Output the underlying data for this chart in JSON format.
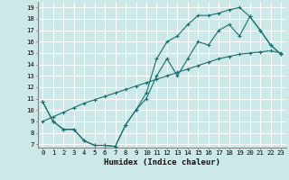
{
  "xlabel": "Humidex (Indice chaleur)",
  "bg_color": "#cce8e8",
  "line_color": "#1a6e6e",
  "grid_color": "#ffffff",
  "xlim": [
    -0.5,
    23.5
  ],
  "ylim": [
    6.7,
    19.5
  ],
  "xticks": [
    0,
    1,
    2,
    3,
    4,
    5,
    6,
    7,
    8,
    9,
    10,
    11,
    12,
    13,
    14,
    15,
    16,
    17,
    18,
    19,
    20,
    21,
    22,
    23
  ],
  "yticks": [
    7,
    8,
    9,
    10,
    11,
    12,
    13,
    14,
    15,
    16,
    17,
    18,
    19
  ],
  "line1_x": [
    0,
    1,
    2,
    3,
    4,
    5,
    6,
    7,
    8,
    9,
    10,
    11,
    12,
    13,
    14,
    15,
    16,
    17,
    18,
    19,
    20,
    21,
    22,
    23
  ],
  "line1_y": [
    10.7,
    9.0,
    8.3,
    8.3,
    7.3,
    6.9,
    6.9,
    6.8,
    8.7,
    10.0,
    11.0,
    13.0,
    14.5,
    13.0,
    14.5,
    16.0,
    15.7,
    17.0,
    17.5,
    16.5,
    18.2,
    17.0,
    15.7,
    14.9
  ],
  "line2_x": [
    0,
    1,
    2,
    3,
    4,
    5,
    6,
    7,
    8,
    9,
    10,
    11,
    12,
    13,
    14,
    15,
    16,
    17,
    18,
    19,
    20,
    21,
    22,
    23
  ],
  "line2_y": [
    10.7,
    9.0,
    8.3,
    8.3,
    7.3,
    6.9,
    6.9,
    6.8,
    8.7,
    10.0,
    11.5,
    14.5,
    16.0,
    16.5,
    17.5,
    18.3,
    18.3,
    18.5,
    18.8,
    19.0,
    18.2,
    17.0,
    15.7,
    14.9
  ],
  "line3_x": [
    0,
    1,
    2,
    3,
    4,
    5,
    6,
    7,
    8,
    9,
    10,
    11,
    12,
    13,
    14,
    15,
    16,
    17,
    18,
    19,
    20,
    21,
    22,
    23
  ],
  "line3_y": [
    9.0,
    9.4,
    9.8,
    10.2,
    10.6,
    10.9,
    11.2,
    11.5,
    11.8,
    12.1,
    12.4,
    12.7,
    13.0,
    13.3,
    13.6,
    13.9,
    14.2,
    14.5,
    14.7,
    14.9,
    15.0,
    15.1,
    15.2,
    15.0
  ]
}
